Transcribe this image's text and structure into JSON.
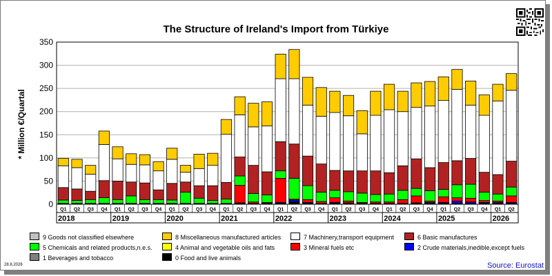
{
  "chart_data": {
    "type": "bar",
    "stacked": true,
    "title": "The Structure of Ireland's Import from Türkiye",
    "ylabel": "* Million €/Quartal",
    "ylim": [
      0,
      350
    ],
    "yticks": [
      0,
      50,
      100,
      150,
      200,
      250,
      300,
      350
    ],
    "grid": true,
    "legend_placement": "bottom",
    "categories": [
      "Q1",
      "Q2",
      "Q3",
      "Q4",
      "Q1",
      "Q2",
      "Q3",
      "Q4",
      "Q1",
      "Q2",
      "Q3",
      "Q4",
      "Q1",
      "Q2",
      "Q3",
      "Q4",
      "Q1",
      "Q2",
      "Q3",
      "Q4",
      "Q1",
      "Q2",
      "Q3",
      "Q4",
      "Q1",
      "Q2",
      "Q3",
      "Q4",
      "Q1",
      "Q2",
      "Q3",
      "Q4",
      "Q1",
      "Q2"
    ],
    "years": [
      {
        "label": "2018",
        "start": 0,
        "count": 4
      },
      {
        "label": "2019",
        "start": 4,
        "count": 4
      },
      {
        "label": "2020",
        "start": 8,
        "count": 4
      },
      {
        "label": "2021",
        "start": 12,
        "count": 4
      },
      {
        "label": "2022",
        "start": 16,
        "count": 4
      },
      {
        "label": "2023",
        "start": 20,
        "count": 4
      },
      {
        "label": "2024",
        "start": 24,
        "count": 4
      },
      {
        "label": "2025",
        "start": 28,
        "count": 4
      },
      {
        "label": "2026",
        "start": 32,
        "count": 2
      }
    ],
    "series": [
      {
        "name": "0 Food and live animals",
        "color": "#000000",
        "values": [
          1,
          1,
          1,
          1,
          1,
          1,
          1,
          1,
          1,
          1,
          1,
          1,
          1,
          2,
          1,
          1,
          2,
          5,
          2,
          1,
          2,
          2,
          1,
          1,
          1,
          1,
          2,
          2,
          2,
          2,
          2,
          2,
          2,
          2
        ]
      },
      {
        "name": "1 Beverages and tobacco",
        "color": "#808080",
        "values": [
          0,
          0,
          0,
          0,
          0,
          0,
          0,
          0,
          0,
          0,
          0,
          0,
          0,
          0,
          0,
          0,
          0,
          0,
          0,
          0,
          0,
          0,
          0,
          0,
          0,
          0,
          0,
          0,
          0,
          0,
          0,
          0,
          0,
          0
        ]
      },
      {
        "name": "2 Crude materials,inedible,except fuels",
        "color": "#0000ff",
        "values": [
          1,
          1,
          1,
          1,
          1,
          1,
          1,
          1,
          1,
          1,
          1,
          1,
          1,
          1,
          1,
          1,
          2,
          4,
          2,
          1,
          2,
          1,
          1,
          1,
          1,
          1,
          1,
          2,
          2,
          5,
          3,
          2,
          2,
          2
        ]
      },
      {
        "name": "3 Mineral fuels etc",
        "color": "#ff0000",
        "values": [
          0,
          0,
          0,
          0,
          0,
          0,
          0,
          0,
          0,
          0,
          0,
          0,
          0,
          38,
          3,
          2,
          52,
          2,
          6,
          4,
          10,
          4,
          2,
          3,
          3,
          8,
          15,
          3,
          12,
          7,
          8,
          4,
          3,
          14
        ]
      },
      {
        "name": "4 Animal and vegetable oils and fats",
        "color": "#ffff00",
        "values": [
          0,
          0,
          0,
          0,
          0,
          0,
          0,
          0,
          0,
          0,
          0,
          0,
          0,
          0,
          0,
          0,
          0,
          0,
          0,
          0,
          0,
          0,
          0,
          0,
          0,
          0,
          0,
          0,
          0,
          0,
          0,
          0,
          0,
          0
        ]
      },
      {
        "name": "5 Chemicals and related products,n.e.s.",
        "color": "#00ff00",
        "values": [
          7,
          6,
          8,
          12,
          8,
          16,
          8,
          8,
          7,
          24,
          11,
          6,
          9,
          20,
          18,
          16,
          16,
          45,
          30,
          20,
          16,
          20,
          20,
          16,
          17,
          20,
          16,
          22,
          16,
          28,
          30,
          18,
          15,
          19
        ]
      },
      {
        "name": "6 Basic manufactures",
        "color": "#b22222",
        "values": [
          27,
          25,
          18,
          37,
          40,
          30,
          36,
          21,
          36,
          22,
          27,
          32,
          36,
          41,
          61,
          50,
          63,
          74,
          64,
          61,
          43,
          45,
          48,
          51,
          46,
          53,
          64,
          50,
          58,
          52,
          56,
          43,
          42,
          56
        ]
      },
      {
        "name": "7 Machinery,transport equipment",
        "color": "#ffffff",
        "values": [
          47,
          46,
          37,
          78,
          48,
          38,
          39,
          41,
          52,
          21,
          37,
          44,
          104,
          91,
          83,
          99,
          136,
          141,
          110,
          103,
          125,
          119,
          80,
          120,
          136,
          117,
          111,
          133,
          134,
          154,
          115,
          123,
          159,
          153
        ]
      },
      {
        "name": "8 Miscellaneous manufactured articles",
        "color": "#ffcc00",
        "values": [
          16,
          18,
          19,
          29,
          26,
          23,
          22,
          20,
          24,
          15,
          31,
          26,
          32,
          39,
          51,
          52,
          53,
          63,
          60,
          62,
          46,
          44,
          50,
          52,
          55,
          44,
          53,
          53,
          51,
          43,
          52,
          44,
          36,
          36
        ]
      },
      {
        "name": "9 Goods not classified elsewhere",
        "color": "#c0c0c0",
        "values": [
          0,
          0,
          0,
          0,
          0,
          0,
          0,
          0,
          0,
          0,
          0,
          0,
          0,
          0,
          0,
          0,
          0,
          0,
          0,
          0,
          0,
          0,
          0,
          0,
          0,
          0,
          0,
          0,
          0,
          0,
          0,
          0,
          0,
          0
        ]
      }
    ]
  },
  "legend": {
    "items": [
      {
        "label": "9 Goods not classified elsewhere",
        "color": "#c0c0c0"
      },
      {
        "label": "8 Miscellaneous manufactured articles",
        "color": "#ffcc00"
      },
      {
        "label": "7 Machinery,transport equipment",
        "color": "#ffffff"
      },
      {
        "label": "6 Basic manufactures",
        "color": "#b22222"
      },
      {
        "label": "5 Chemicals and related products,n.e.s.",
        "color": "#00ff00"
      },
      {
        "label": "4 Animal and vegetable oils and fats",
        "color": "#ffff00"
      },
      {
        "label": "3 Mineral fuels etc",
        "color": "#ff0000"
      },
      {
        "label": "2 Crude materials,inedible,except fuels",
        "color": "#0000ff"
      },
      {
        "label": "1 Beverages and tobacco",
        "color": "#808080"
      },
      {
        "label": "0 Food and live animals",
        "color": "#000000"
      }
    ]
  },
  "footer": {
    "date": "28.8.2026",
    "source": "Source: Eurostat"
  },
  "qr_icon": "qr-code-icon"
}
